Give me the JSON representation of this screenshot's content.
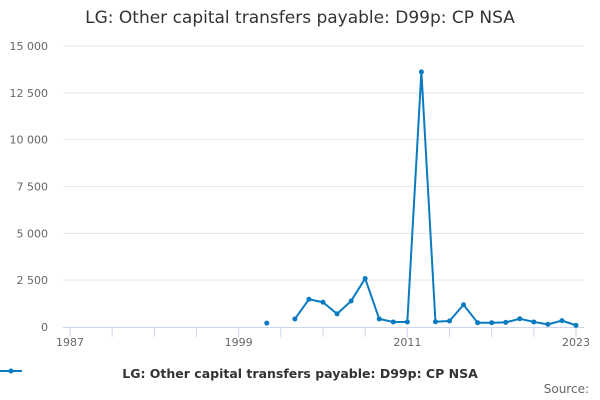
{
  "chart_data": {
    "type": "line",
    "title": "LG: Other capital transfers payable: D99p: CP NSA",
    "xlabel": "",
    "ylabel": "",
    "xlim": [
      1987,
      2023
    ],
    "ylim": [
      0,
      15000
    ],
    "x_tick_labels": [
      "1987",
      "1999",
      "2011",
      "2023"
    ],
    "y_tick_labels": [
      "0",
      "2 500",
      "5 000",
      "7 500",
      "10 000",
      "12 500",
      "15 000"
    ],
    "grid": "horizontal",
    "legend_position": "bottom",
    "series": [
      {
        "name": "LG: Other capital transfers payable: D99p: CP NSA",
        "color": "#0a7bc1",
        "x": [
          2001,
          2002,
          2003,
          2004,
          2005,
          2006,
          2007,
          2008,
          2009,
          2010,
          2011,
          2012,
          2013,
          2014,
          2015,
          2016,
          2017,
          2018,
          2019,
          2020,
          2021,
          2022,
          2023
        ],
        "y": [
          210,
          null,
          430,
          1480,
          1320,
          700,
          1390,
          2590,
          430,
          270,
          270,
          13620,
          280,
          320,
          1190,
          230,
          230,
          245,
          440,
          270,
          140,
          340,
          90
        ]
      }
    ]
  },
  "source_label": "Source:"
}
